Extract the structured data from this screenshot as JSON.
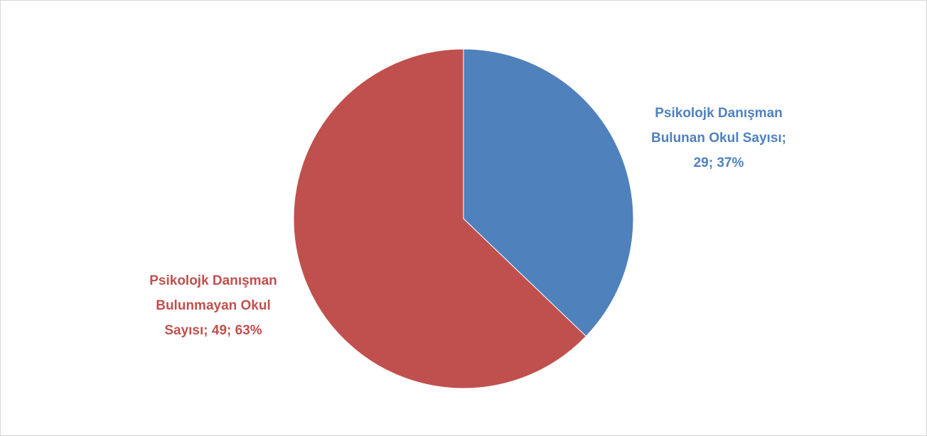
{
  "chart_data": {
    "type": "pie",
    "title": "",
    "start_angle_deg": 0,
    "direction": "clockwise",
    "slices": [
      {
        "name": "Psikolojk Danışman Bulunan Okul Sayısı",
        "value": 29,
        "percent": "37%",
        "color": "#4f81bd",
        "label_lines": [
          "Psikolojk Danışman",
          "Bulunan Okul Sayısı;",
          "29; 37%"
        ]
      },
      {
        "name": "Psikolojk Danışman Bulunmayan Okul Sayısı",
        "value": 49,
        "percent": "63%",
        "color": "#c0504d",
        "label_lines": [
          "Psikolojk Danışman",
          "Bulunmayan Okul",
          "Sayısı; 49; 63%"
        ]
      }
    ],
    "border_color": "#d9d9d9",
    "slice_separator_color": "#ffffff"
  }
}
